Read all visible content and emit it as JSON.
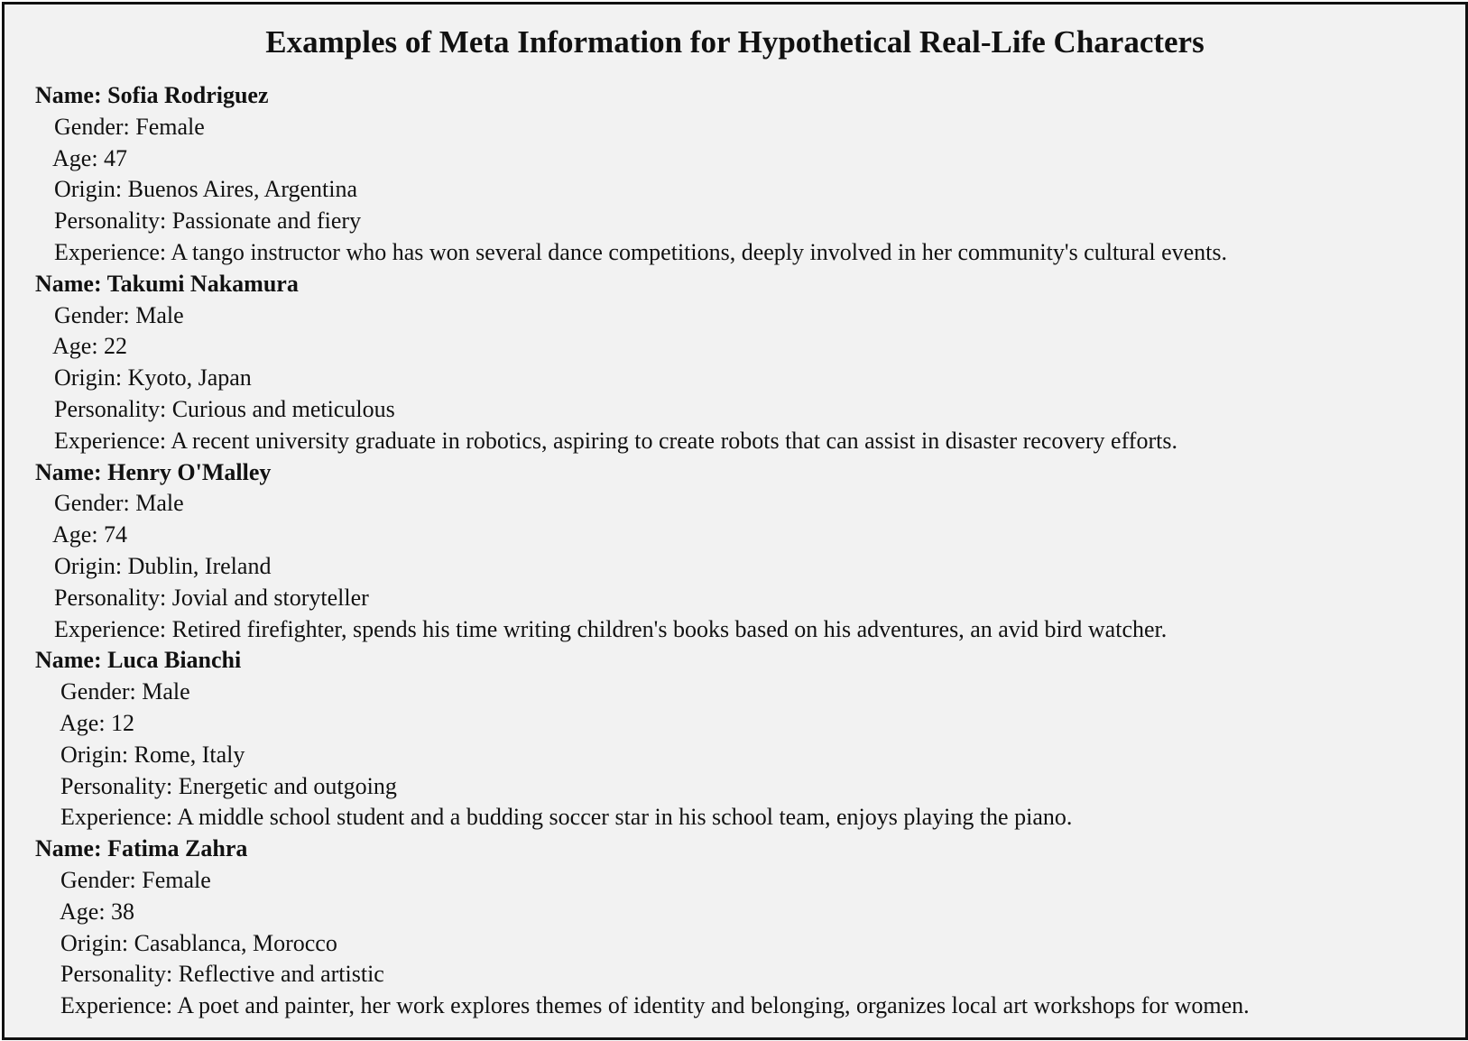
{
  "title": "Examples of Meta Information for Hypothetical Real-Life Characters",
  "characters": [
    {
      "name": "Name: Sofia Rodriguez",
      "gender": "Gender: Female",
      "age": "Age: 47",
      "origin": "Origin: Buenos Aires, Argentina",
      "personality": "Personality: Passionate and fiery",
      "experience": "Experience: A tango instructor who has won several dance competitions, deeply involved in her community's cultural events."
    },
    {
      "name": "Name: Takumi Nakamura",
      "gender": "Gender: Male",
      "age": "Age: 22",
      "origin": "Origin: Kyoto, Japan",
      "personality": "Personality: Curious and meticulous",
      "experience": "Experience: A recent university graduate in robotics, aspiring to create robots that can assist in disaster recovery efforts."
    },
    {
      "name": "Name: Henry O'Malley",
      "gender": "Gender: Male",
      "age": "Age: 74",
      "origin": "Origin: Dublin, Ireland",
      "personality": "Personality: Jovial and storyteller",
      "experience": "Experience: Retired firefighter, spends his time writing children's books based on his adventures, an avid bird watcher."
    },
    {
      "name": "Name: Luca Bianchi",
      "gender": "Gender: Male",
      "age": "Age: 12",
      "origin": "Origin: Rome, Italy",
      "personality": "Personality: Energetic and outgoing",
      "experience": "Experience: A middle school student and a budding soccer star in his school team, enjoys playing the piano."
    },
    {
      "name": "Name: Fatima Zahra",
      "gender": "Gender: Female",
      "age": "Age: 38",
      "origin": "Origin: Casablanca, Morocco",
      "personality": "Personality: Reflective and artistic",
      "experience": "Experience: A poet and painter, her work explores themes of identity and belonging, organizes local art workshops for women."
    }
  ]
}
